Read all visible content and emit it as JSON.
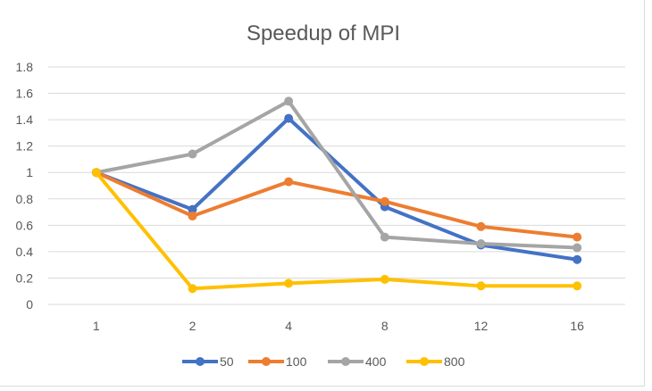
{
  "chart_data": {
    "type": "line",
    "title": "Speedup of MPI",
    "xlabel": "",
    "ylabel": "",
    "categories": [
      "1",
      "2",
      "4",
      "8",
      "12",
      "16"
    ],
    "ylim": [
      0,
      1.8
    ],
    "yticks": [
      0,
      0.2,
      0.4,
      0.6,
      0.8,
      1,
      1.2,
      1.4,
      1.6,
      1.8
    ],
    "grid": true,
    "legend_position": "bottom",
    "series": [
      {
        "name": "50",
        "color": "#4472C4",
        "values": [
          1,
          0.72,
          1.41,
          0.74,
          0.45,
          0.34
        ]
      },
      {
        "name": "100",
        "color": "#ED7D31",
        "values": [
          1,
          0.67,
          0.93,
          0.78,
          0.59,
          0.51
        ]
      },
      {
        "name": "400",
        "color": "#A5A5A5",
        "values": [
          1,
          1.14,
          1.54,
          0.51,
          0.46,
          0.43
        ]
      },
      {
        "name": "800",
        "color": "#FFC000",
        "values": [
          1,
          0.12,
          0.16,
          0.19,
          0.14,
          0.14
        ]
      }
    ]
  }
}
